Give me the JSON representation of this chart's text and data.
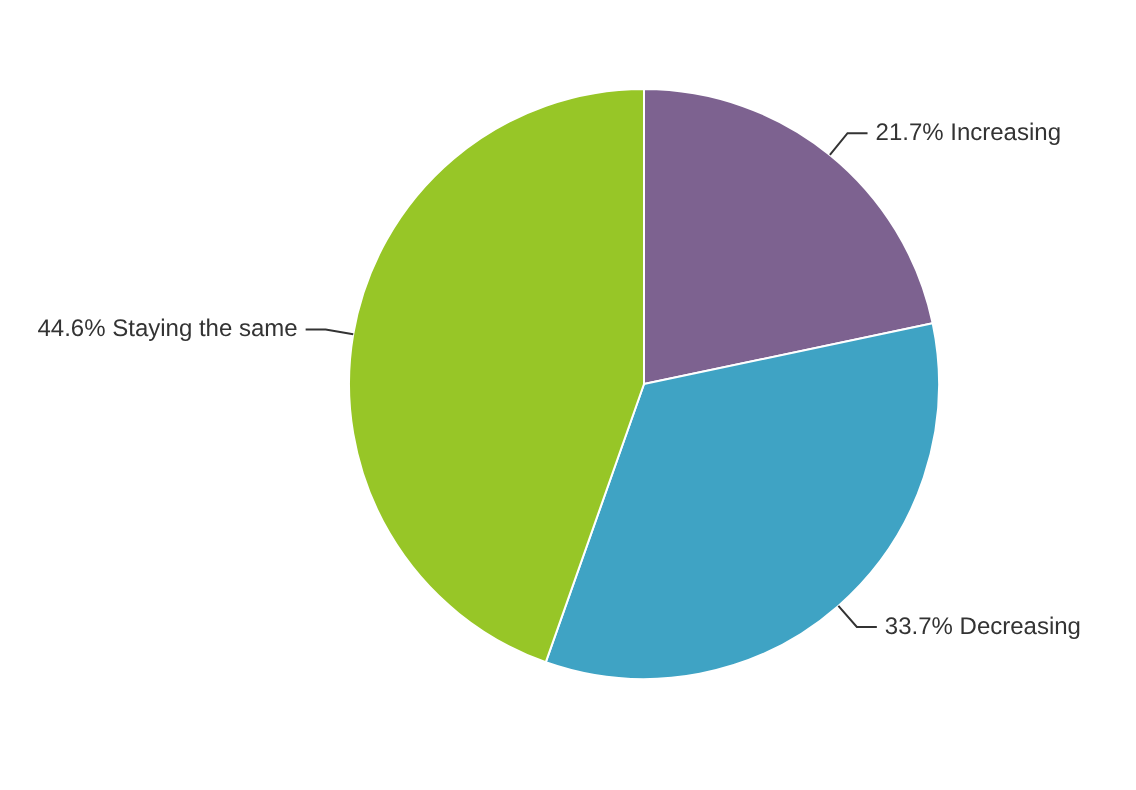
{
  "chart_data": {
    "type": "pie",
    "categories": [
      "Increasing",
      "Decreasing",
      "Staying the same"
    ],
    "values": [
      21.7,
      33.7,
      44.6
    ],
    "value_labels": [
      "21.7%",
      "33.7%",
      "44.6%"
    ],
    "colors": [
      "#7d6290",
      "#3fa3c4",
      "#97c627"
    ],
    "legend": false
  }
}
